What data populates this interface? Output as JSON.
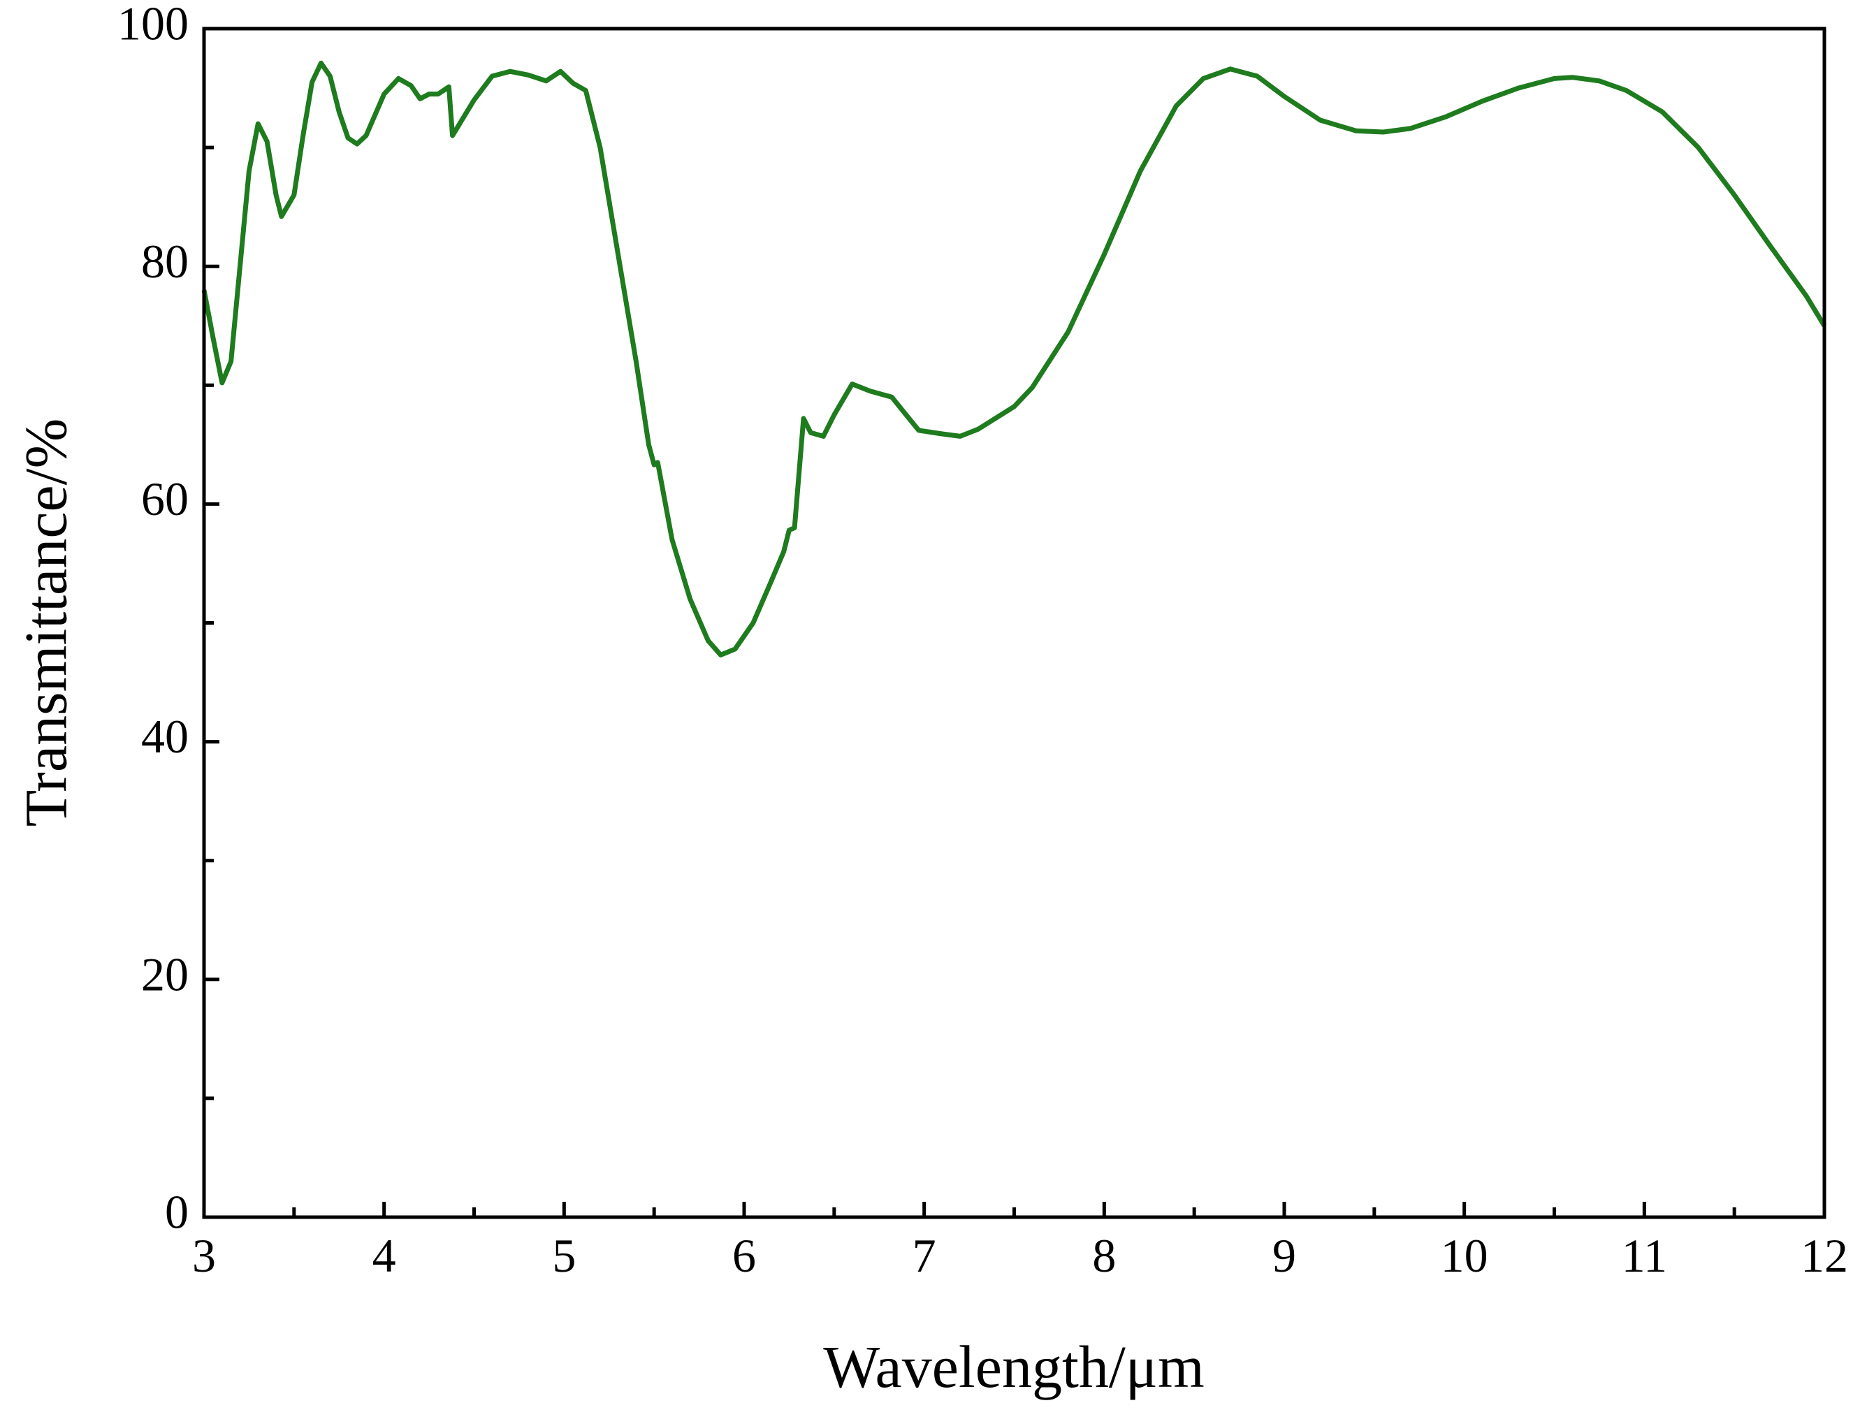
{
  "chart_data": {
    "type": "line",
    "x_label": "Wavelength/μm",
    "y_label": "Transmittance/%",
    "xlim": [
      3,
      12
    ],
    "ylim": [
      0,
      100
    ],
    "xticks": [
      3,
      4,
      5,
      6,
      7,
      8,
      9,
      10,
      11,
      12
    ],
    "yticks": [
      0,
      20,
      40,
      60,
      80,
      100
    ],
    "xminorticks": [
      3.5,
      4.5,
      5.5,
      6.5,
      7.5,
      8.5,
      9.5,
      10.5,
      11.5
    ],
    "yminorticks": [
      10,
      30,
      50,
      70,
      90
    ],
    "series": [
      {
        "color": "#1e7b1e",
        "x": [
          3.0,
          3.05,
          3.1,
          3.15,
          3.2,
          3.25,
          3.3,
          3.35,
          3.4,
          3.43,
          3.5,
          3.55,
          3.6,
          3.65,
          3.7,
          3.75,
          3.8,
          3.85,
          3.9,
          4.0,
          4.08,
          4.15,
          4.2,
          4.25,
          4.3,
          4.36,
          4.38,
          4.42,
          4.5,
          4.6,
          4.7,
          4.8,
          4.9,
          4.98,
          5.05,
          5.12,
          5.2,
          5.3,
          5.4,
          5.47,
          5.5,
          5.52,
          5.6,
          5.7,
          5.8,
          5.87,
          5.95,
          6.05,
          6.15,
          6.22,
          6.25,
          6.28,
          6.33,
          6.37,
          6.44,
          6.5,
          6.6,
          6.7,
          6.82,
          6.9,
          6.97,
          7.1,
          7.2,
          7.3,
          7.5,
          7.6,
          7.8,
          8.0,
          8.2,
          8.4,
          8.55,
          8.7,
          8.85,
          9.0,
          9.2,
          9.4,
          9.55,
          9.7,
          9.9,
          10.1,
          10.3,
          10.5,
          10.6,
          10.75,
          10.9,
          11.1,
          11.3,
          11.5,
          11.7,
          11.9,
          12.0
        ],
        "values": [
          78,
          74,
          70.2,
          72,
          80,
          88,
          92,
          90.5,
          86,
          84.2,
          86,
          91,
          95.5,
          97.1,
          96,
          93,
          90.8,
          90.3,
          91,
          94.5,
          95.8,
          95.2,
          94.1,
          94.5,
          94.5,
          95.1,
          91,
          92,
          94,
          96,
          96.4,
          96.1,
          95.6,
          96.4,
          95.4,
          94.8,
          90,
          81,
          72,
          65,
          63.3,
          63.5,
          57,
          52,
          48.5,
          47.3,
          47.8,
          50,
          53.5,
          56,
          57.8,
          58,
          67.2,
          66,
          65.7,
          67.5,
          70.1,
          69.5,
          69,
          67.5,
          66.2,
          65.9,
          65.7,
          66.3,
          68.2,
          69.8,
          74.5,
          81,
          88,
          93.5,
          95.8,
          96.6,
          96,
          94.3,
          92.3,
          91.4,
          91.3,
          91.6,
          92.6,
          93.9,
          95,
          95.8,
          95.9,
          95.6,
          94.8,
          93,
          90,
          86,
          81.7,
          77.5,
          75
        ]
      }
    ]
  }
}
